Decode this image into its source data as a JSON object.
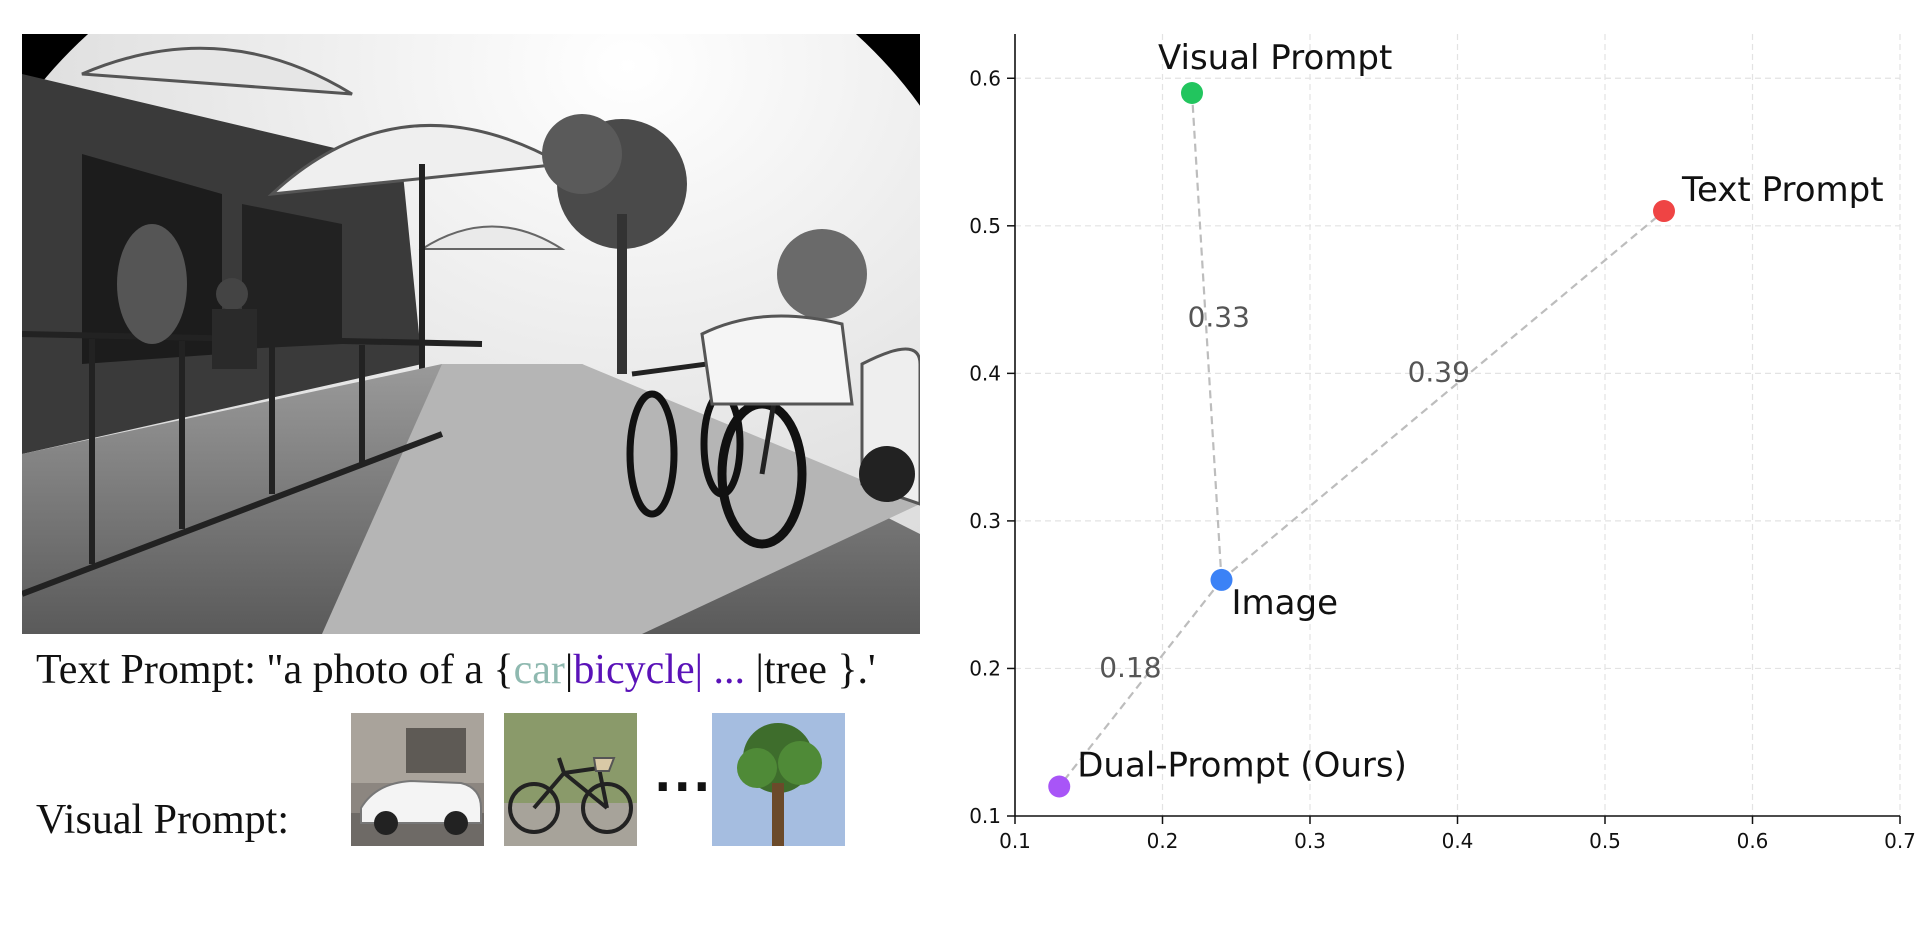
{
  "text_prompt": {
    "prefix": "Text Prompt: \"a photo of a {",
    "car": "car",
    "sep1": "|",
    "bicycle": "bicycle",
    "sep2": "| ...",
    "tree": " |tree }.'"
  },
  "visual_prompt": {
    "label": "Visual Prompt:",
    "ellipsis": "..."
  },
  "colors": {
    "visual_prompt": "#22c55e",
    "text_prompt": "#ef4444",
    "image": "#3b82f6",
    "dual_prompt": "#a855f7",
    "connector": "#bdbdbd"
  },
  "chart_data": {
    "type": "scatter",
    "title": "",
    "xlabel": "",
    "ylabel": "",
    "xlim": [
      0.1,
      0.7
    ],
    "ylim": [
      0.1,
      0.63
    ],
    "x_ticks": [
      "0.1",
      "0.2",
      "0.3",
      "0.4",
      "0.5",
      "0.6",
      "0.7"
    ],
    "y_ticks": [
      "0.1",
      "0.2",
      "0.3",
      "0.4",
      "0.5",
      "0.6"
    ],
    "grid": true,
    "points": [
      {
        "name": "Visual Prompt",
        "x": 0.22,
        "y": 0.59,
        "color_key": "visual_prompt"
      },
      {
        "name": "Text Prompt",
        "x": 0.54,
        "y": 0.51,
        "color_key": "text_prompt"
      },
      {
        "name": "Image",
        "x": 0.24,
        "y": 0.26,
        "color_key": "image"
      },
      {
        "name": "Dual-Prompt (Ours)",
        "x": 0.13,
        "y": 0.12,
        "color_key": "dual_prompt"
      }
    ],
    "connections": [
      {
        "from": "Image",
        "to": "Visual Prompt",
        "distance": "0.33"
      },
      {
        "from": "Image",
        "to": "Text Prompt",
        "distance": "0.39"
      },
      {
        "from": "Image",
        "to": "Dual-Prompt (Ours)",
        "distance": "0.18"
      }
    ]
  }
}
